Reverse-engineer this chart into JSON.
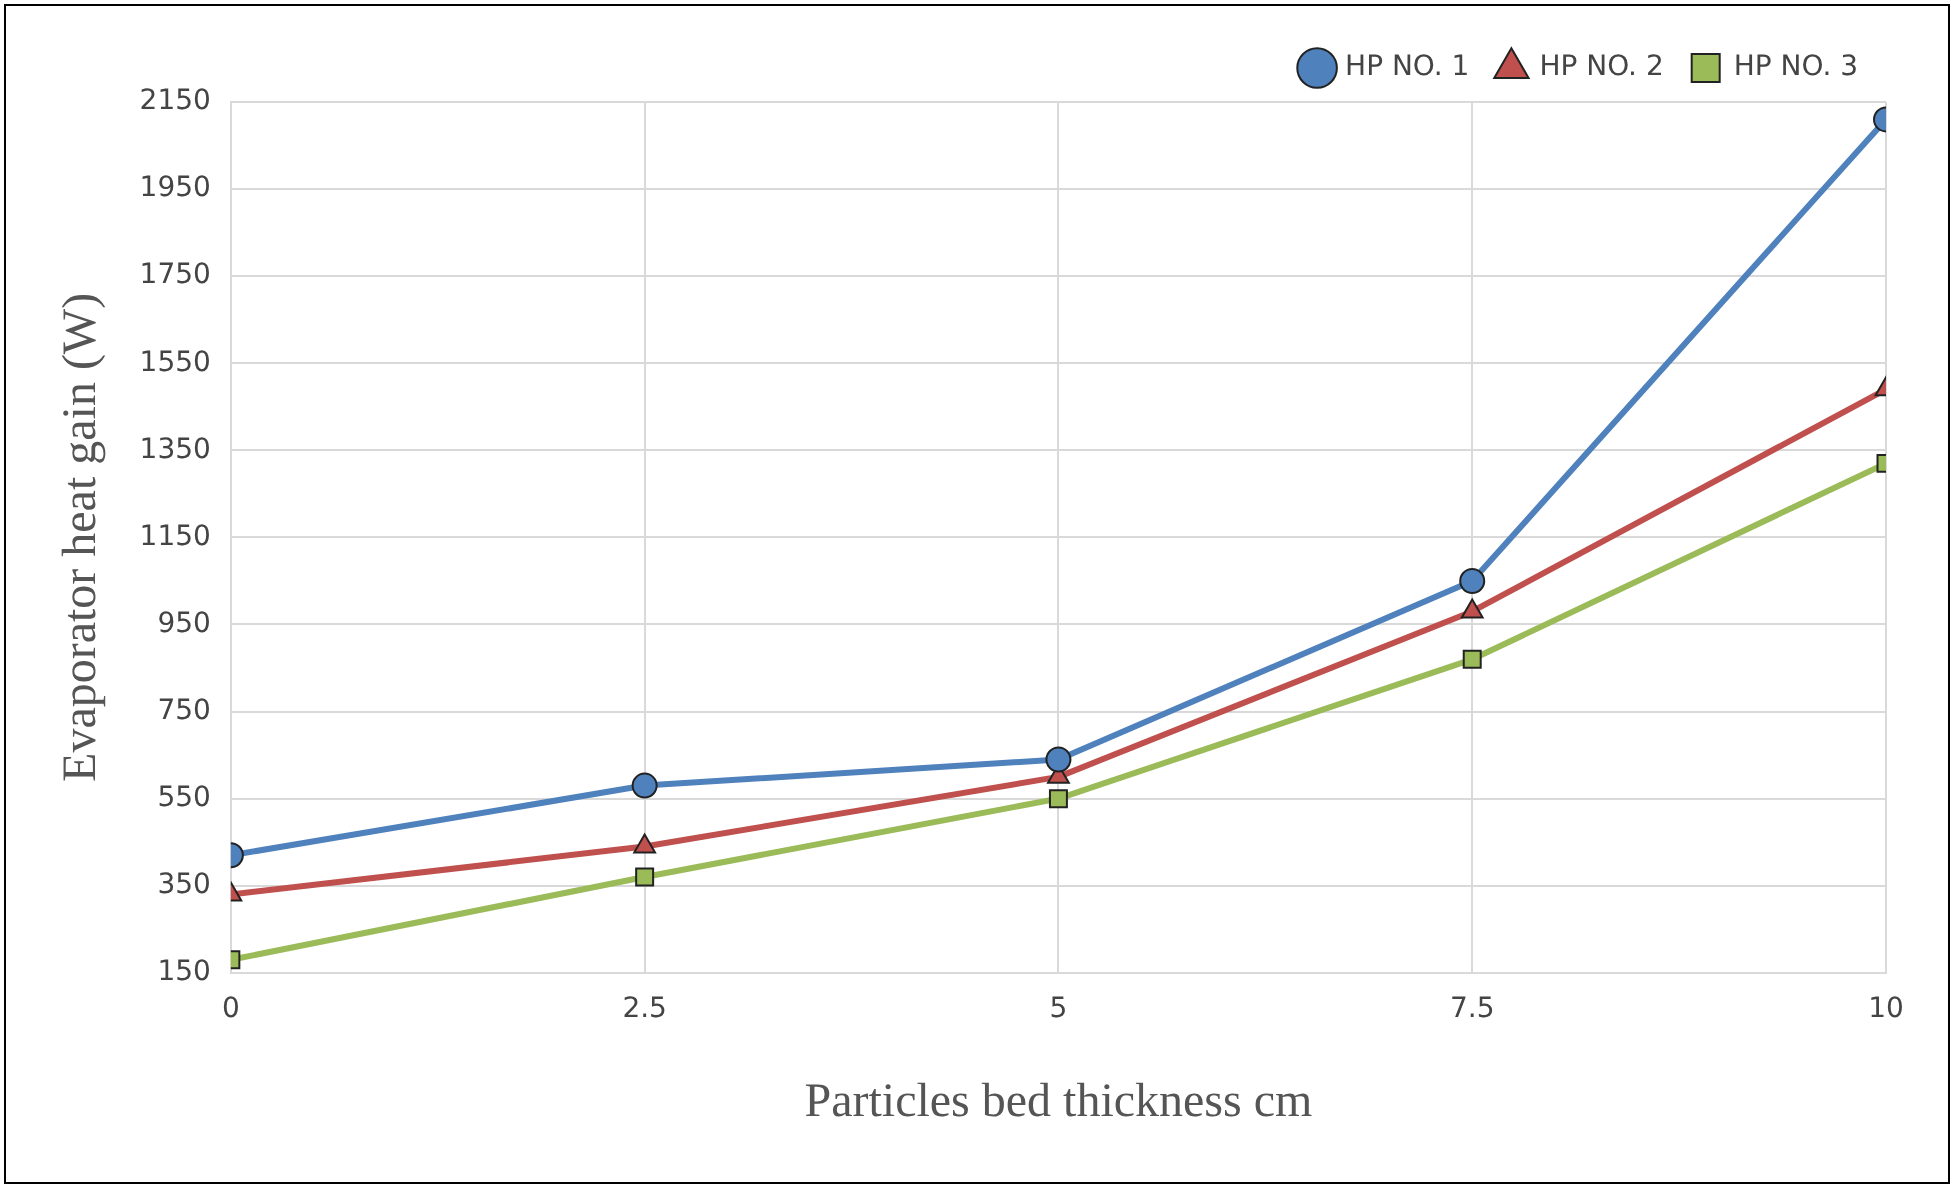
{
  "chart_data": {
    "type": "line",
    "xlabel": "Particles bed thickness cm",
    "ylabel": "Evaporator heat gain (W)",
    "x": [
      0,
      2.5,
      5,
      7.5,
      10
    ],
    "xlim": [
      0,
      10
    ],
    "xticks": [
      0,
      2.5,
      5,
      7.5,
      10
    ],
    "ylim": [
      150,
      2150
    ],
    "yticks": [
      150,
      350,
      550,
      750,
      950,
      1150,
      1350,
      1550,
      1750,
      1950,
      2150
    ],
    "grid": true,
    "legend": "top right",
    "series": [
      {
        "name": "HP NO. 1",
        "color": "#4f81bd",
        "marker": "circle",
        "values": [
          420,
          580,
          640,
          1050,
          2110
        ]
      },
      {
        "name": "HP NO. 2",
        "color": "#c0504d",
        "marker": "triangle",
        "values": [
          330,
          440,
          600,
          980,
          1490
        ]
      },
      {
        "name": "HP NO. 3",
        "color": "#9bbb59",
        "marker": "square",
        "values": [
          180,
          370,
          550,
          870,
          1320
        ]
      }
    ]
  }
}
